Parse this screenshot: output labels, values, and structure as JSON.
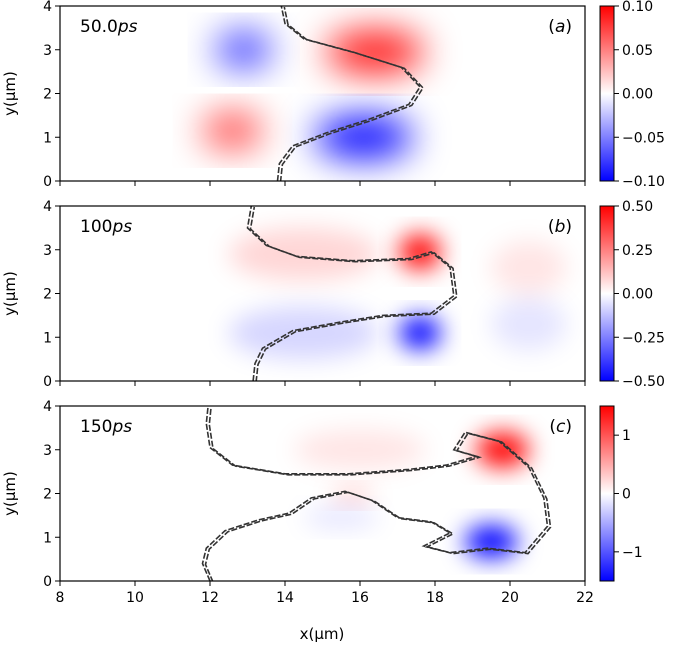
{
  "chart_data": [
    {
      "type": "heatmap",
      "panel_label": "(a)",
      "time_value": "50.0",
      "time_unit": "ps",
      "ylabel": "y(μm)",
      "xlim": [
        8,
        22
      ],
      "ylim": [
        0,
        4
      ],
      "yticks": [
        "0",
        "1",
        "2",
        "3",
        "4"
      ],
      "colorbar": {
        "range": [
          -0.1,
          0.1
        ],
        "ticks": [
          0.1,
          0.05,
          0.0,
          -0.05,
          -0.1
        ],
        "tick_labels": [
          "0.10",
          "0.05",
          "0.00",
          "−0.05",
          "−0.10"
        ]
      },
      "lobes": [
        {
          "sign": "negative",
          "x": 12.9,
          "y": 3.0,
          "rx": 1.5,
          "ry": 0.85,
          "strength": 0.75
        },
        {
          "sign": "positive",
          "x": 12.6,
          "y": 1.15,
          "rx": 1.6,
          "ry": 0.85,
          "strength": 0.7
        },
        {
          "sign": "positive",
          "x": 16.4,
          "y": 2.95,
          "rx": 2.6,
          "ry": 1.0,
          "strength": 0.9
        },
        {
          "sign": "negative",
          "x": 16.1,
          "y": 1.0,
          "rx": 2.6,
          "ry": 1.0,
          "strength": 0.95
        }
      ],
      "interface": [
        [
          13.8,
          0.0
        ],
        [
          13.85,
          0.4
        ],
        [
          14.2,
          0.8
        ],
        [
          15.1,
          1.1
        ],
        [
          16.2,
          1.4
        ],
        [
          17.3,
          1.75
        ],
        [
          17.6,
          2.15
        ],
        [
          17.1,
          2.6
        ],
        [
          15.8,
          2.95
        ],
        [
          14.5,
          3.25
        ],
        [
          14.0,
          3.6
        ],
        [
          13.9,
          4.0
        ]
      ]
    },
    {
      "type": "heatmap",
      "panel_label": "(b)",
      "time_value": "100",
      "time_unit": "ps",
      "ylabel": "y(μm)",
      "xlim": [
        8,
        22
      ],
      "ylim": [
        0,
        4
      ],
      "yticks": [
        "0",
        "1",
        "2",
        "3",
        "4"
      ],
      "colorbar": {
        "range": [
          -0.5,
          0.5
        ],
        "ticks": [
          0.5,
          0.25,
          0.0,
          -0.25,
          -0.5
        ],
        "tick_labels": [
          "0.50",
          "0.25",
          "0.00",
          "−0.25",
          "−0.50"
        ]
      },
      "lobes": [
        {
          "sign": "positive",
          "x": 17.6,
          "y": 2.95,
          "rx": 1.1,
          "ry": 0.8,
          "strength": 1.0
        },
        {
          "sign": "negative",
          "x": 17.6,
          "y": 1.1,
          "rx": 1.1,
          "ry": 0.75,
          "strength": 1.0
        },
        {
          "sign": "positive",
          "x": 14.5,
          "y": 2.9,
          "rx": 4.0,
          "ry": 1.2,
          "strength": 0.16
        },
        {
          "sign": "negative",
          "x": 14.5,
          "y": 1.1,
          "rx": 4.0,
          "ry": 1.2,
          "strength": 0.16
        },
        {
          "sign": "positive",
          "x": 20.5,
          "y": 2.6,
          "rx": 2.0,
          "ry": 1.2,
          "strength": 0.1
        },
        {
          "sign": "negative",
          "x": 20.5,
          "y": 1.3,
          "rx": 2.0,
          "ry": 1.2,
          "strength": 0.1
        }
      ],
      "interface": [
        [
          13.15,
          0.0
        ],
        [
          13.2,
          0.4
        ],
        [
          13.4,
          0.75
        ],
        [
          14.2,
          1.15
        ],
        [
          15.5,
          1.35
        ],
        [
          16.6,
          1.5
        ],
        [
          17.9,
          1.55
        ],
        [
          18.5,
          1.95
        ],
        [
          18.4,
          2.6
        ],
        [
          17.9,
          2.95
        ],
        [
          17.3,
          2.8
        ],
        [
          15.8,
          2.75
        ],
        [
          14.3,
          2.85
        ],
        [
          13.5,
          3.1
        ],
        [
          13.0,
          3.5
        ],
        [
          13.1,
          4.0
        ]
      ]
    },
    {
      "type": "heatmap",
      "panel_label": "(c)",
      "time_value": "150",
      "time_unit": "ps",
      "ylabel": "y(μm)",
      "xlabel": "x(μm)",
      "xlim": [
        8,
        22
      ],
      "ylim": [
        0,
        4
      ],
      "xticks": [
        "8",
        "10",
        "12",
        "14",
        "16",
        "18",
        "20",
        "22"
      ],
      "yticks": [
        "0",
        "1",
        "2",
        "3",
        "4"
      ],
      "colorbar": {
        "range": [
          -1.5,
          1.5
        ],
        "ticks": [
          1,
          0,
          -1
        ],
        "tick_labels": [
          "1",
          "0",
          "−1"
        ]
      },
      "lobes": [
        {
          "sign": "positive",
          "x": 19.8,
          "y": 3.0,
          "rx": 1.4,
          "ry": 0.8,
          "strength": 1.0
        },
        {
          "sign": "negative",
          "x": 19.5,
          "y": 0.9,
          "rx": 1.4,
          "ry": 0.75,
          "strength": 1.0
        },
        {
          "sign": "positive",
          "x": 15.8,
          "y": 1.95,
          "rx": 1.1,
          "ry": 0.35,
          "strength": 0.2
        },
        {
          "sign": "negative",
          "x": 15.5,
          "y": 1.45,
          "rx": 2.0,
          "ry": 0.5,
          "strength": 0.1
        },
        {
          "sign": "positive",
          "x": 16.0,
          "y": 3.0,
          "rx": 3.5,
          "ry": 0.9,
          "strength": 0.1
        }
      ],
      "interface": [
        [
          12.0,
          0.0
        ],
        [
          11.8,
          0.4
        ],
        [
          11.9,
          0.75
        ],
        [
          12.4,
          1.15
        ],
        [
          13.3,
          1.4
        ],
        [
          14.1,
          1.55
        ],
        [
          14.7,
          1.9
        ],
        [
          15.6,
          2.05
        ],
        [
          16.3,
          1.85
        ],
        [
          17.0,
          1.45
        ],
        [
          17.9,
          1.35
        ],
        [
          18.4,
          1.1
        ],
        [
          17.7,
          0.8
        ],
        [
          18.4,
          0.65
        ],
        [
          19.4,
          0.75
        ],
        [
          20.4,
          0.65
        ],
        [
          21.0,
          1.25
        ],
        [
          20.9,
          1.9
        ],
        [
          20.5,
          2.6
        ],
        [
          19.7,
          3.2
        ],
        [
          18.8,
          3.4
        ],
        [
          18.5,
          3.0
        ],
        [
          19.1,
          2.85
        ],
        [
          18.3,
          2.65
        ],
        [
          17.3,
          2.55
        ],
        [
          15.7,
          2.45
        ],
        [
          14.0,
          2.45
        ],
        [
          12.6,
          2.65
        ],
        [
          12.0,
          3.05
        ],
        [
          11.9,
          3.6
        ],
        [
          11.95,
          4.0
        ]
      ]
    }
  ]
}
